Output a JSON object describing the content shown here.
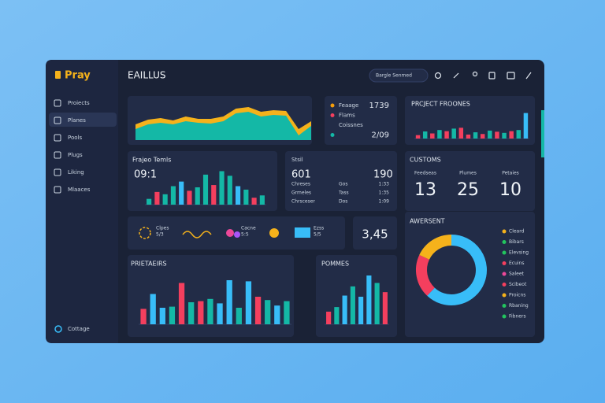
{
  "sidebar": {
    "logo": "Pray",
    "items": [
      "Proiects",
      "Planes",
      "Pools",
      "Plugs",
      "Liking",
      "Mlaaces"
    ],
    "footer": "Cottage"
  },
  "topbar": {
    "title": "EAILLUS",
    "search": "Bargle Senmed"
  },
  "area_chart": {
    "series": [
      {
        "color": "#f5b21b",
        "values": [
          20,
          26,
          28,
          25,
          30,
          27,
          27,
          30,
          40,
          42,
          36,
          38,
          37,
          14,
          24
        ]
      },
      {
        "color": "#14b8a6",
        "values": [
          14,
          20,
          22,
          20,
          24,
          22,
          21,
          24,
          34,
          36,
          30,
          32,
          31,
          6,
          18
        ]
      }
    ]
  },
  "legend_card": {
    "items": [
      {
        "label": "Feaage",
        "color": "#f59e0b",
        "value": "1739"
      },
      {
        "label": "Flams",
        "color": "#f43f5e"
      },
      {
        "label": "Coissnes"
      },
      {
        "color": "#14b8a6",
        "value": "2/09"
      }
    ]
  },
  "project_chart": {
    "title": "PRCJECT FROONES",
    "values": [
      12,
      25,
      18,
      30,
      26,
      35,
      38,
      14,
      22,
      16,
      28,
      24,
      20,
      26,
      30,
      90
    ],
    "colors": [
      "#f43f5e",
      "#14b8a6",
      "#f43f5e",
      "#14b8a6",
      "#f43f5e",
      "#14b8a6",
      "#f43f5e",
      "#f43f5e",
      "#14b8a6",
      "#f43f5e",
      "#14b8a6",
      "#f43f5e",
      "#14b8a6",
      "#f43f5e",
      "#14b8a6",
      "#38bdf8"
    ]
  },
  "frajeo_chart": {
    "title": "Frajeo Temls",
    "figure": "09:1",
    "values": [
      10,
      22,
      18,
      32,
      40,
      24,
      30,
      52,
      34,
      58,
      50,
      32,
      26,
      12,
      16
    ],
    "colors": [
      "#14b8a6",
      "#f43f5e",
      "#14b8a6",
      "#14b8a6",
      "#38bdf8",
      "#f43f5e",
      "#14b8a6",
      "#14b8a6",
      "#f43f5e",
      "#14b8a6",
      "#14b8a6",
      "#38bdf8",
      "#14b8a6",
      "#f43f5e",
      "#14b8a6"
    ]
  },
  "table_card": {
    "title": "Stsil",
    "left": "601",
    "right": "190",
    "rows": [
      [
        "Chreses",
        "Gos",
        "1:33"
      ],
      [
        "Grmeles",
        "Tass",
        "1:35"
      ],
      [
        "Chrsceser",
        "Dos",
        "1:09"
      ]
    ]
  },
  "customs_card": {
    "title": "CUSTOMS",
    "labels": [
      "Feedseas",
      "Plumes",
      "Petaies"
    ],
    "numbers": [
      "13",
      "25",
      "10"
    ]
  },
  "icons_card": {
    "items": [
      [
        "Clpes",
        "5/3"
      ],
      [
        "Cacne",
        "5:5"
      ],
      [
        "Ezss",
        "5/5"
      ]
    ]
  },
  "stat_card": {
    "value": "3,45"
  },
  "donut": {
    "title": "AWERSENT",
    "values": [
      62,
      20,
      18
    ],
    "colors": [
      "#38bdf8",
      "#f43f5e",
      "#f5b21b"
    ],
    "legend": [
      "Cleard",
      "Bibars",
      "Elevsing",
      "Ecuins",
      "Saleet",
      "Scibeot",
      "Proicns",
      "Rbaning",
      "Fibners"
    ],
    "legend_colors": [
      "#f5b21b",
      "#22c55e",
      "#22c55e",
      "#f43f5e",
      "#ec4899",
      "#f43f5e",
      "#f5b21b",
      "#22c55e",
      "#22c55e"
    ]
  },
  "prietaeirs_chart": {
    "title": "PRIETAEIRS",
    "values": [
      28,
      55,
      30,
      32,
      75,
      40,
      42,
      46,
      38,
      80,
      30,
      78,
      50,
      44,
      34,
      42
    ],
    "colors": [
      "#f43f5e",
      "#38bdf8",
      "#38bdf8",
      "#14b8a6",
      "#f43f5e",
      "#14b8a6",
      "#f43f5e",
      "#14b8a6",
      "#38bdf8",
      "#38bdf8",
      "#14b8a6",
      "#38bdf8",
      "#f43f5e",
      "#14b8a6",
      "#38bdf8",
      "#14b8a6"
    ]
  },
  "pommes_chart": {
    "title": "POMMES",
    "values": [
      22,
      30,
      50,
      66,
      48,
      85,
      72,
      56
    ],
    "colors": [
      "#f43f5e",
      "#14b8a6",
      "#38bdf8",
      "#14b8a6",
      "#38bdf8",
      "#38bdf8",
      "#14b8a6",
      "#f43f5e"
    ]
  }
}
